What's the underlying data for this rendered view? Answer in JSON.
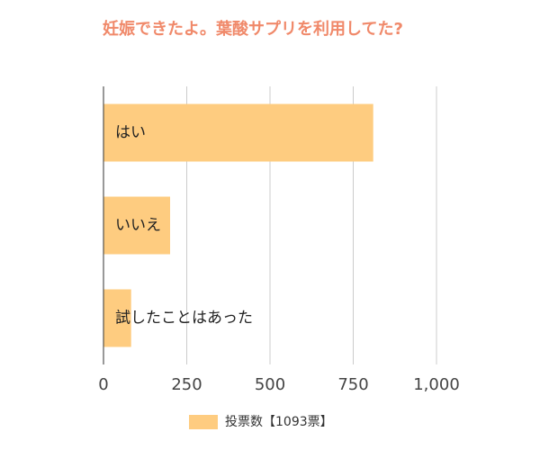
{
  "chart_data": {
    "type": "bar",
    "orientation": "horizontal",
    "title": "妊娠できたよ。葉酸サプリを利用してた?",
    "categories": [
      "はい",
      "いいえ",
      "試したことはあった"
    ],
    "series": [
      {
        "name": "投票数【1093票】",
        "color": "#fecc80",
        "values": [
          810,
          200,
          83
        ]
      }
    ],
    "xlim": [
      0,
      1000
    ],
    "xticks": [
      0,
      250,
      500,
      750,
      {
        "value": 1000,
        "label": "1,000"
      }
    ],
    "grid": true
  }
}
